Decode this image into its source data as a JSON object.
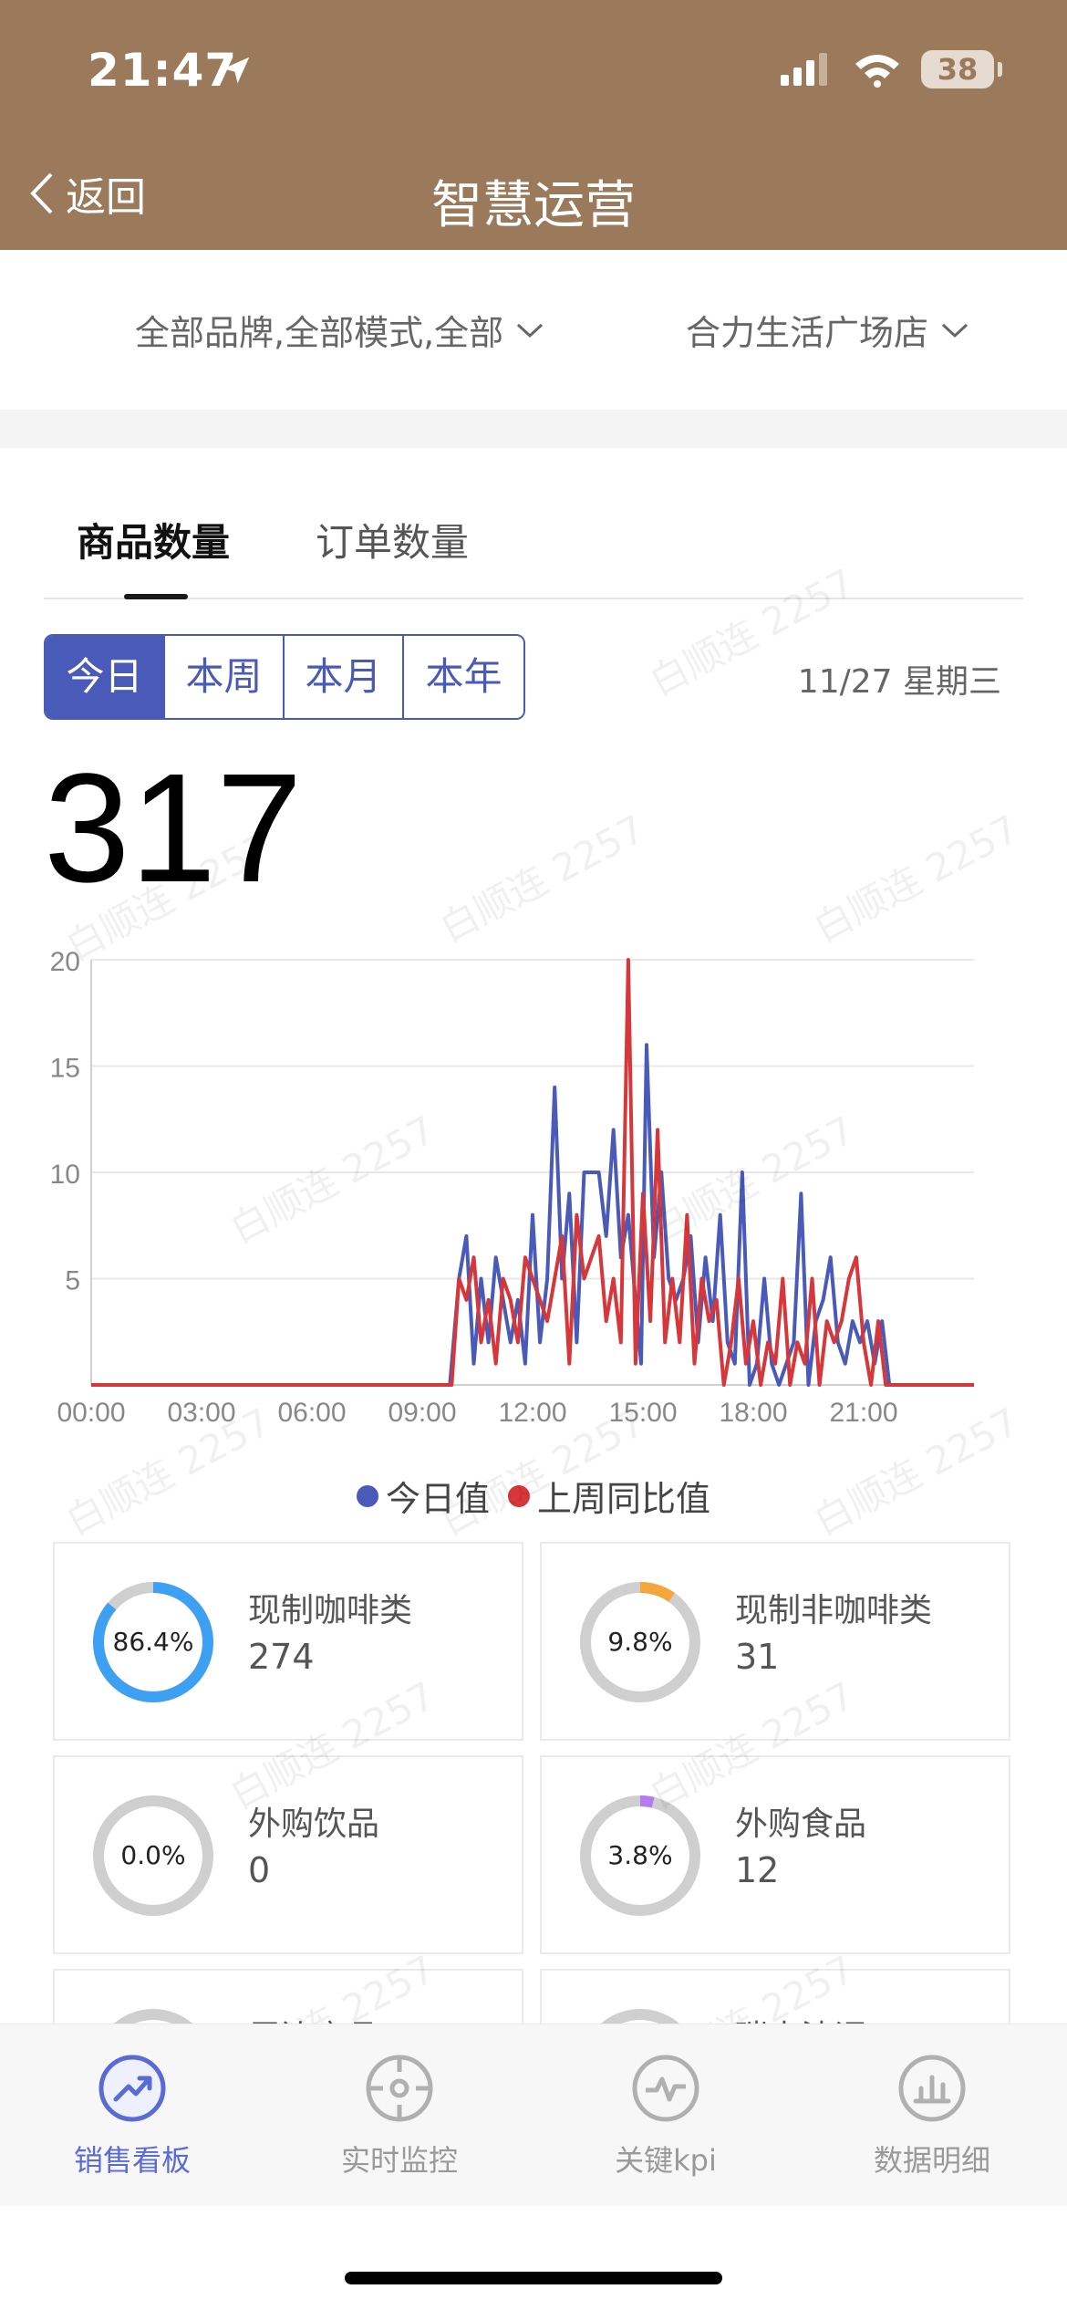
{
  "status_bar": {
    "time": "21:47",
    "battery": "38"
  },
  "nav": {
    "back_label": "返回",
    "title": "智慧运营"
  },
  "filters": {
    "brand_mode": "全部品牌,全部模式,全部",
    "store": "合力生活广场店"
  },
  "tabs": [
    {
      "label": "商品数量",
      "active": true
    },
    {
      "label": "订单数量",
      "active": false
    }
  ],
  "period": {
    "options": [
      "今日",
      "本周",
      "本月",
      "本年"
    ],
    "selected": "今日",
    "date": "11/27 星期三"
  },
  "total": "317",
  "watermark": "白顺连 2257",
  "colors": {
    "header": "#9a7a5b",
    "accent": "#4a5ab9",
    "today": "#4a5ab9",
    "last_week": "#d6373b"
  },
  "chart_data": {
    "type": "line",
    "x_ticks": [
      "00:00",
      "03:00",
      "06:00",
      "09:00",
      "12:00",
      "15:00",
      "18:00",
      "21:00"
    ],
    "y_ticks": [
      "20",
      "15",
      "10",
      "5"
    ],
    "ylim": [
      0,
      20
    ],
    "x_range_hours": [
      0,
      24
    ],
    "series": [
      {
        "name": "今日值",
        "color": "#4a5ab9",
        "points": [
          [
            0,
            0
          ],
          [
            9.75,
            0
          ],
          [
            10.0,
            5
          ],
          [
            10.2,
            7
          ],
          [
            10.4,
            1
          ],
          [
            10.6,
            5
          ],
          [
            10.8,
            2
          ],
          [
            11.0,
            6
          ],
          [
            11.2,
            4
          ],
          [
            11.4,
            2
          ],
          [
            11.6,
            4
          ],
          [
            11.8,
            1
          ],
          [
            12.0,
            8
          ],
          [
            12.2,
            2
          ],
          [
            12.4,
            5
          ],
          [
            12.6,
            14
          ],
          [
            12.8,
            5
          ],
          [
            13.0,
            9
          ],
          [
            13.2,
            2
          ],
          [
            13.4,
            10
          ],
          [
            13.6,
            10
          ],
          [
            13.8,
            10
          ],
          [
            14.0,
            7
          ],
          [
            14.2,
            12
          ],
          [
            14.4,
            6
          ],
          [
            14.6,
            8
          ],
          [
            14.8,
            4
          ],
          [
            14.95,
            1
          ],
          [
            15.1,
            16
          ],
          [
            15.3,
            6
          ],
          [
            15.5,
            10
          ],
          [
            15.7,
            5
          ],
          [
            15.9,
            4
          ],
          [
            16.1,
            5
          ],
          [
            16.3,
            7
          ],
          [
            16.5,
            2
          ],
          [
            16.7,
            6
          ],
          [
            16.9,
            3
          ],
          [
            17.1,
            8
          ],
          [
            17.3,
            2
          ],
          [
            17.5,
            1
          ],
          [
            17.7,
            10
          ],
          [
            17.9,
            0
          ],
          [
            18.1,
            1
          ],
          [
            18.3,
            5
          ],
          [
            18.5,
            1
          ],
          [
            18.7,
            0
          ],
          [
            18.9,
            1
          ],
          [
            19.1,
            2
          ],
          [
            19.3,
            9
          ],
          [
            19.5,
            0
          ],
          [
            19.7,
            3
          ],
          [
            19.9,
            4
          ],
          [
            20.1,
            6
          ],
          [
            20.3,
            2
          ],
          [
            20.5,
            1
          ],
          [
            20.7,
            3
          ],
          [
            20.9,
            2
          ],
          [
            21.1,
            3
          ],
          [
            21.3,
            1
          ],
          [
            21.5,
            3
          ],
          [
            21.7,
            0
          ],
          [
            24,
            0
          ]
        ]
      },
      {
        "name": "上周同比值",
        "color": "#d6373b",
        "points": [
          [
            0,
            0
          ],
          [
            9.8,
            0
          ],
          [
            10.0,
            5
          ],
          [
            10.2,
            4
          ],
          [
            10.4,
            6
          ],
          [
            10.6,
            2
          ],
          [
            10.8,
            4
          ],
          [
            11.0,
            1
          ],
          [
            11.2,
            5
          ],
          [
            11.4,
            4
          ],
          [
            11.6,
            2
          ],
          [
            11.8,
            6
          ],
          [
            12.0,
            5
          ],
          [
            12.2,
            4
          ],
          [
            12.4,
            3
          ],
          [
            12.6,
            5
          ],
          [
            12.8,
            7
          ],
          [
            13.0,
            1
          ],
          [
            13.2,
            8
          ],
          [
            13.4,
            5
          ],
          [
            13.6,
            6
          ],
          [
            13.8,
            7
          ],
          [
            14.0,
            3
          ],
          [
            14.2,
            5
          ],
          [
            14.4,
            2
          ],
          [
            14.6,
            20
          ],
          [
            14.8,
            1
          ],
          [
            15.0,
            9
          ],
          [
            15.2,
            3
          ],
          [
            15.4,
            12
          ],
          [
            15.6,
            2
          ],
          [
            15.8,
            5
          ],
          [
            16.0,
            2
          ],
          [
            16.2,
            8
          ],
          [
            16.4,
            1
          ],
          [
            16.6,
            5
          ],
          [
            16.8,
            3
          ],
          [
            17.0,
            4
          ],
          [
            17.2,
            0
          ],
          [
            17.4,
            2
          ],
          [
            17.6,
            5
          ],
          [
            17.8,
            1
          ],
          [
            18.0,
            3
          ],
          [
            18.2,
            0
          ],
          [
            18.4,
            2
          ],
          [
            18.6,
            1
          ],
          [
            18.8,
            5
          ],
          [
            19.0,
            0
          ],
          [
            19.2,
            2
          ],
          [
            19.4,
            1
          ],
          [
            19.6,
            5
          ],
          [
            19.8,
            0
          ],
          [
            20.0,
            3
          ],
          [
            20.2,
            2
          ],
          [
            20.4,
            3
          ],
          [
            20.6,
            5
          ],
          [
            20.8,
            6
          ],
          [
            21.0,
            2
          ],
          [
            21.2,
            0
          ],
          [
            21.4,
            3
          ],
          [
            21.6,
            0
          ],
          [
            24,
            0
          ]
        ]
      }
    ]
  },
  "categories": [
    {
      "name": "现制咖啡类",
      "value": "274",
      "percent_label": "86.4%",
      "percent": 86.4,
      "color": "#3ea0f2"
    },
    {
      "name": "现制非咖啡类",
      "value": "31",
      "percent_label": "9.8%",
      "percent": 9.8,
      "color": "#f5a63a"
    },
    {
      "name": "外购饮品",
      "value": "0",
      "percent_label": "0.0%",
      "percent": 0.0,
      "color": "#cccccc"
    },
    {
      "name": "外购食品",
      "value": "12",
      "percent_label": "3.8%",
      "percent": 3.8,
      "color": "#b47cf0"
    },
    {
      "name": "周边商品",
      "value": "",
      "percent_label": "",
      "percent": 0,
      "color": "#cccccc"
    },
    {
      "name": "瑞幸法调",
      "value": "",
      "percent_label": "",
      "percent": 0,
      "color": "#cccccc"
    }
  ],
  "tabbar": [
    {
      "label": "销售看板",
      "icon": "trend-up-icon",
      "active": true
    },
    {
      "label": "实时监控",
      "icon": "crosshair-icon",
      "active": false
    },
    {
      "label": "关键kpi",
      "icon": "pulse-icon",
      "active": false
    },
    {
      "label": "数据明细",
      "icon": "bar-chart-icon",
      "active": false
    }
  ]
}
